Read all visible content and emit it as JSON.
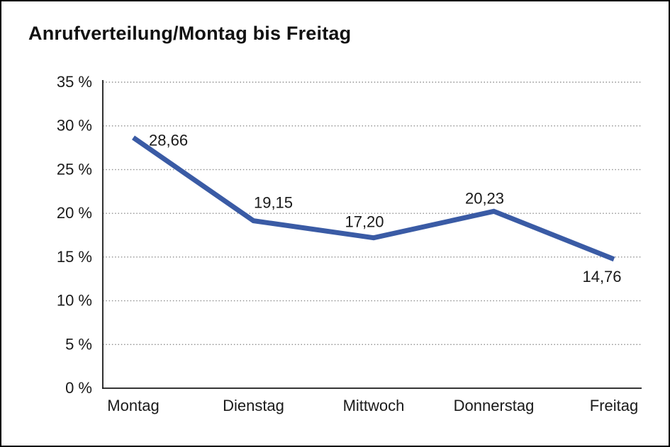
{
  "window": {
    "background": "#ffffff",
    "border_color": "#000000"
  },
  "chart_data": {
    "type": "line",
    "title": "Anrufverteilung/Montag bis Freitag",
    "categories": [
      "Montag",
      "Dienstag",
      "Mittwoch",
      "Donnerstag",
      "Freitag"
    ],
    "values": [
      28.66,
      19.15,
      17.2,
      20.23,
      14.76
    ],
    "value_labels": [
      "28,66",
      "19,15",
      "17,20",
      "20,23",
      "14,76"
    ],
    "xlabel": "",
    "ylabel": "",
    "ylim": [
      0,
      35
    ],
    "ytick_step": 5,
    "ytick_labels": [
      "0 %",
      "5 %",
      "10 %",
      "15 %",
      "20 %",
      "25 %",
      "30 %",
      "35 %"
    ],
    "grid": "horizontal-dotted",
    "legend": "none",
    "line_color": "#3A5BA5",
    "grid_color": "#8F8F8F",
    "axis_color": "#1A1A1A",
    "text_color": "#1A1A1A"
  }
}
